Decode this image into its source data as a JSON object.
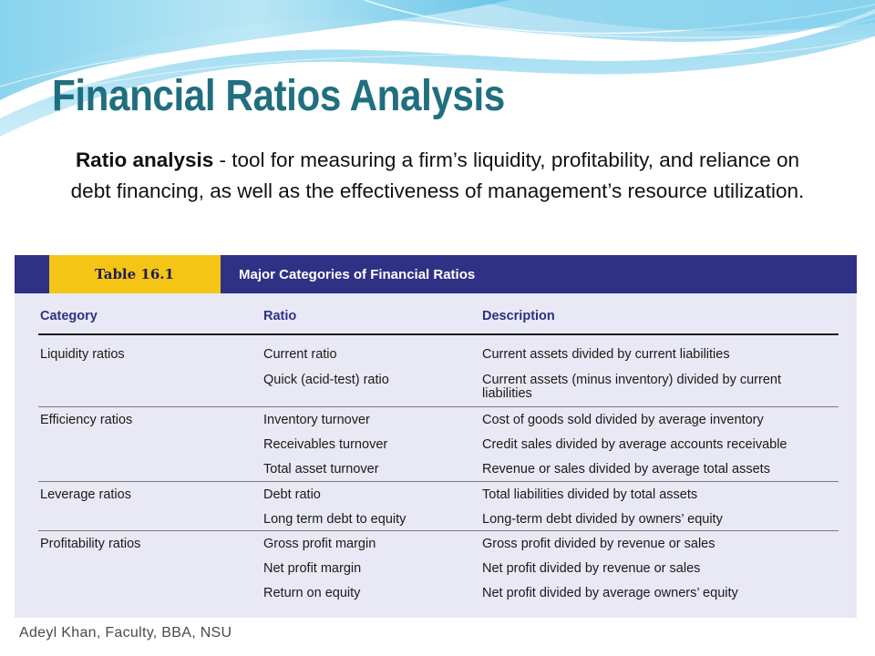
{
  "slide": {
    "title": "Financial Ratios Analysis",
    "definition_term": "Ratio analysis",
    "definition_text": " - tool for measuring a firm’s liquidity, profitability, and reliance on debt financing, as well as the effectiveness of management’s resource utilization."
  },
  "table": {
    "number": "Table 16.1",
    "caption": "Major Categories of Financial Ratios",
    "headers": {
      "category": "Category",
      "ratio": "Ratio",
      "description": "Description"
    },
    "groups": [
      {
        "category": "Liquidity ratios",
        "rows": [
          {
            "ratio": "Current ratio",
            "description": "Current assets divided by current liabilities"
          },
          {
            "ratio": "Quick (acid-test) ratio",
            "description": "Current assets (minus inventory) divided by current liabilities"
          }
        ]
      },
      {
        "category": "Efficiency ratios",
        "rows": [
          {
            "ratio": "Inventory turnover",
            "description": "Cost of goods sold divided by average inventory"
          },
          {
            "ratio": "Receivables turnover",
            "description": "Credit sales divided by average accounts receivable"
          },
          {
            "ratio": "Total asset turnover",
            "description": "Revenue or sales divided by average total assets"
          }
        ]
      },
      {
        "category": "Leverage ratios",
        "rows": [
          {
            "ratio": "Debt ratio",
            "description": "Total liabilities divided by total assets"
          },
          {
            "ratio": "Long term debt to equity",
            "description": "Long-term debt divided by owners’ equity"
          }
        ]
      },
      {
        "category": "Profitability ratios",
        "rows": [
          {
            "ratio": "Gross profit margin",
            "description": "Gross profit divided by revenue or sales"
          },
          {
            "ratio": "Net profit margin",
            "description": "Net profit divided by revenue or sales"
          },
          {
            "ratio": "Return on equity",
            "description": "Net profit divided by average owners’ equity"
          }
        ]
      }
    ]
  },
  "footer": {
    "text": "Adeyl Khan, Faculty, BBA, NSU"
  },
  "colors": {
    "title": "#1f6f80",
    "table_header": "#2e3184",
    "table_number_box": "#f4c416",
    "table_background": "#e8e9f4"
  }
}
